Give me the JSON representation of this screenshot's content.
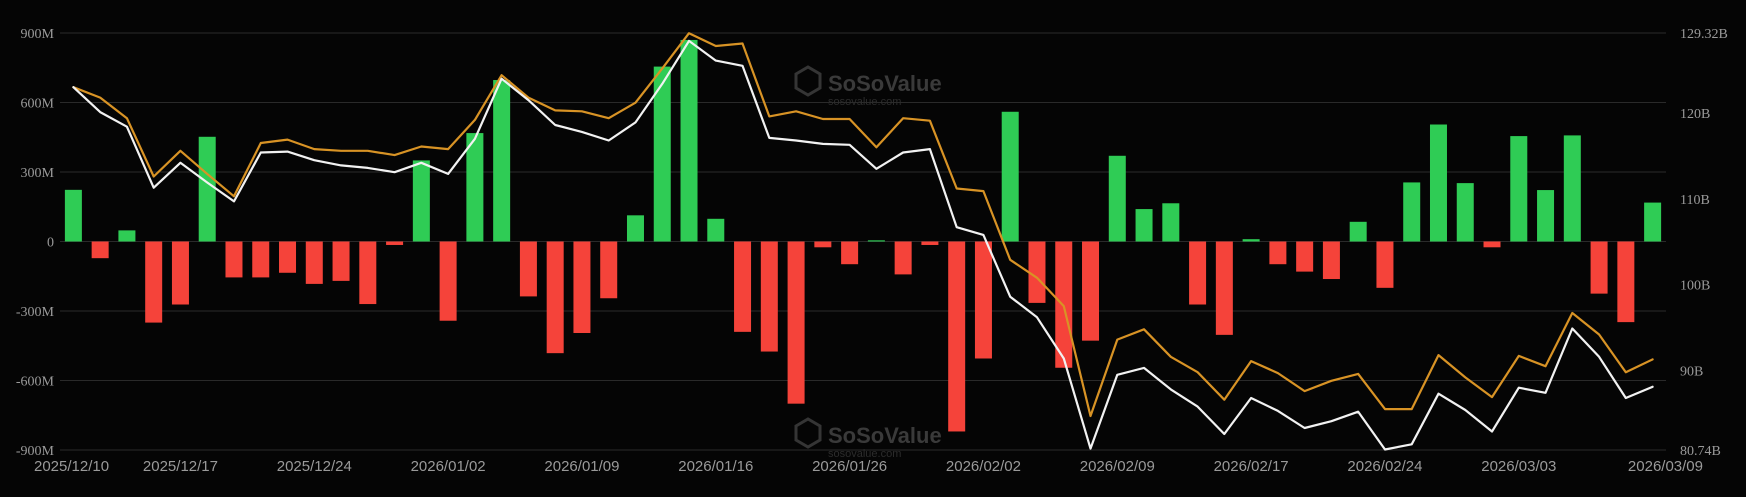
{
  "watermark": {
    "text": "SoSoValue",
    "subtext": "sosovalue.com"
  },
  "chart_data": {
    "type": "bar",
    "colors": {
      "positive": "#2fcc55",
      "negative": "#f5433a",
      "total_value": "#d89325",
      "cum_inflow": "#f2f2f2",
      "grid": "#2a2a2a",
      "background": "#050505"
    },
    "left_axis": {
      "ylim": [
        -900,
        900
      ],
      "ticks": [
        -900,
        -600,
        -300,
        0,
        300,
        600,
        900
      ],
      "tick_labels": [
        "-900M",
        "-600M",
        "-300M",
        "0",
        "300M",
        "600M",
        "900M"
      ]
    },
    "right_axis": {
      "ylim": [
        80.74,
        129.32
      ],
      "ticks": [
        80.74,
        90,
        100,
        110,
        120,
        129.32
      ],
      "tick_labels": [
        "80.74B",
        "90B",
        "100B",
        "110B",
        "120B",
        "129.32B"
      ]
    },
    "x_tick_labels": [
      "2025/12/10",
      "2025/12/17",
      "2025/12/24",
      "2026/01/02",
      "2026/01/09",
      "2026/01/16",
      "2026/01/26",
      "2026/02/02",
      "2026/02/09",
      "2026/02/17",
      "2026/02/24",
      "2026/03/03",
      "2026/03/09"
    ],
    "x_tick_index": [
      0,
      4,
      9,
      14,
      19,
      24,
      29,
      34,
      39,
      44,
      49,
      54,
      58
    ],
    "series": [
      {
        "type": "bar",
        "axis": "left",
        "values": [
          223,
          -72,
          48,
          -350,
          -272,
          452,
          -155,
          -155,
          -135,
          -183,
          -170,
          -270,
          -15,
          350,
          -342,
          468,
          697,
          -237,
          -482,
          -395,
          -245,
          113,
          755,
          870,
          98,
          -390,
          -475,
          -700,
          -25,
          -98,
          5,
          -142,
          -15,
          -820,
          -505,
          560,
          -265,
          -545,
          -428,
          370,
          140,
          165,
          -272,
          -403,
          10,
          -98,
          -130,
          -162,
          85,
          -200,
          255,
          505,
          252,
          -25,
          455,
          222,
          458,
          -225,
          -348,
          168
        ]
      },
      {
        "type": "line",
        "axis": "right",
        "color": "#d89325",
        "values": [
          123,
          121.8,
          119.4,
          112.6,
          115.6,
          112.9,
          110.3,
          116.5,
          116.9,
          115.8,
          115.6,
          115.6,
          115.1,
          116.1,
          115.8,
          119.2,
          124.4,
          121.8,
          120.3,
          120.2,
          119.4,
          121.2,
          125.2,
          129.3,
          127.8,
          128.1,
          119.6,
          120.2,
          119.3,
          119.3,
          116,
          119.4,
          119.1,
          111.2,
          110.9,
          102.9,
          100.8,
          97.5,
          84.7,
          93.6,
          94.8,
          91.6,
          89.8,
          86.6,
          91.1,
          89.7,
          87.6,
          88.8,
          89.6,
          85.5,
          85.5,
          91.8,
          89.2,
          86.9,
          91.7,
          90.5,
          96.7,
          94.2,
          89.8,
          91.3
        ]
      },
      {
        "type": "line",
        "axis": "right",
        "color": "#f2f2f2",
        "values": [
          123,
          120.1,
          118.4,
          111.3,
          114.2,
          111.9,
          109.7,
          115.4,
          115.5,
          114.5,
          113.9,
          113.6,
          113.1,
          114.2,
          112.9,
          117,
          124,
          121.5,
          118.6,
          117.8,
          116.8,
          118.9,
          123.4,
          128.4,
          126.1,
          125.5,
          117.1,
          116.8,
          116.4,
          116.3,
          113.5,
          115.4,
          115.8,
          106.7,
          105.8,
          98.6,
          96.2,
          91.4,
          80.9,
          89.5,
          90.3,
          87.8,
          85.8,
          82.6,
          86.8,
          85.3,
          83.3,
          84.1,
          85.2,
          80.8,
          81.4,
          87.3,
          85.4,
          82.9,
          88,
          87.4,
          94.9,
          91.6,
          86.8,
          88.1
        ]
      }
    ]
  }
}
